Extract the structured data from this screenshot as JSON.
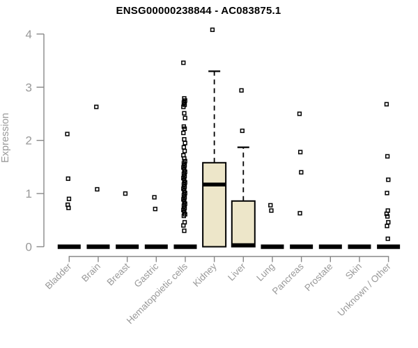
{
  "header": {
    "title": "ENSG00000238844 - AC083875.1"
  },
  "chart_data": {
    "type": "box",
    "title": "ENSG00000238844 - AC083875.1",
    "xlabel": "",
    "ylabel": "Expression",
    "ylim": [
      0,
      4
    ],
    "yticks": [
      0,
      1,
      2,
      3,
      4
    ],
    "grid": false,
    "legend": false,
    "axis_color": "#888888",
    "tick_label_color": "#999999",
    "box_fill": "#EDE6C9",
    "box_stroke": "#000000",
    "point_color": "#000000",
    "categories": [
      "Bladder",
      "Brain",
      "Breast",
      "Gastric",
      "Hematopoietic cells",
      "Kidney",
      "Liver",
      "Lung",
      "Pancreas",
      "Prostate",
      "Skin",
      "Unknown / Other"
    ],
    "series": [
      {
        "name": "Bladder",
        "box": {
          "min": 0,
          "q1": 0,
          "median": 0,
          "q3": 0,
          "whisker_high": 0
        },
        "outliers": [
          2.12,
          1.28,
          0.9,
          0.79,
          0.73
        ]
      },
      {
        "name": "Brain",
        "box": {
          "min": 0,
          "q1": 0,
          "median": 0,
          "q3": 0,
          "whisker_high": 0
        },
        "outliers": [
          2.63,
          1.08
        ]
      },
      {
        "name": "Breast",
        "box": {
          "min": 0,
          "q1": 0,
          "median": 0,
          "q3": 0,
          "whisker_high": 0
        },
        "outliers": [
          1.0
        ]
      },
      {
        "name": "Gastric",
        "box": {
          "min": 0,
          "q1": 0,
          "median": 0,
          "q3": 0,
          "whisker_high": 0
        },
        "outliers": [
          0.93,
          0.71
        ]
      },
      {
        "name": "Hematopoietic cells",
        "box": {
          "min": 0,
          "q1": 0,
          "median": 0,
          "q3": 0,
          "whisker_high": 0
        },
        "outliers": [
          3.46,
          2.79,
          2.75,
          2.71,
          2.67,
          2.63,
          2.51,
          2.42,
          2.26,
          2.22,
          2.14,
          2.02,
          1.95,
          1.87,
          1.8,
          1.72,
          1.66,
          1.61,
          1.57,
          1.53,
          1.49,
          1.45,
          1.41,
          1.37,
          1.33,
          1.29,
          1.25,
          1.21,
          1.17,
          1.13,
          1.09,
          1.05,
          1.01,
          0.97,
          0.93,
          0.89,
          0.85,
          0.81,
          0.77,
          0.73,
          0.69,
          0.65,
          0.61,
          0.58,
          0.46,
          0.4,
          0.3
        ]
      },
      {
        "name": "Kidney",
        "box": {
          "min": 0,
          "q1": 0,
          "median": 1.17,
          "q3": 1.58,
          "whisker_high": 3.3
        },
        "outliers": [
          4.08
        ]
      },
      {
        "name": "Liver",
        "box": {
          "min": 0,
          "q1": 0,
          "median": 0.03,
          "q3": 0.86,
          "whisker_high": 1.87
        },
        "outliers": [
          2.94,
          2.18
        ]
      },
      {
        "name": "Lung",
        "box": {
          "min": 0,
          "q1": 0,
          "median": 0,
          "q3": 0,
          "whisker_high": 0
        },
        "outliers": [
          0.78,
          0.68
        ]
      },
      {
        "name": "Pancreas",
        "box": {
          "min": 0,
          "q1": 0,
          "median": 0,
          "q3": 0,
          "whisker_high": 0
        },
        "outliers": [
          2.5,
          1.78,
          1.4,
          0.63
        ]
      },
      {
        "name": "Prostate",
        "box": {
          "min": 0,
          "q1": 0,
          "median": 0,
          "q3": 0,
          "whisker_high": 0
        },
        "outliers": []
      },
      {
        "name": "Skin",
        "box": {
          "min": 0,
          "q1": 0,
          "median": 0,
          "q3": 0,
          "whisker_high": 0
        },
        "outliers": []
      },
      {
        "name": "Unknown / Other",
        "box": {
          "min": 0,
          "q1": 0,
          "median": 0,
          "q3": 0,
          "whisker_high": 0
        },
        "outliers": [
          2.68,
          1.7,
          1.26,
          1.01,
          0.68,
          0.62,
          0.57,
          0.46,
          0.39,
          0.15
        ]
      }
    ]
  }
}
